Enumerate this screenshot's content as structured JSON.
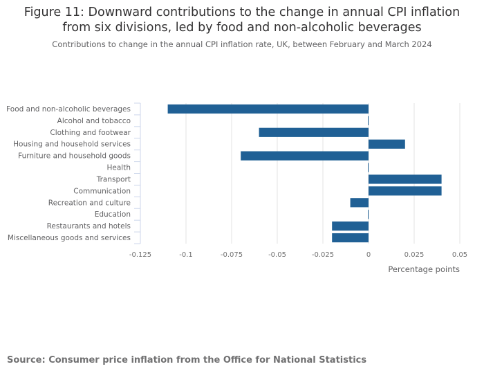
{
  "chart_data": {
    "type": "bar",
    "orientation": "horizontal",
    "title": "Figure 11: Downward contributions to the change in annual CPI inflation from six divisions, led by food and non-alcoholic beverages",
    "title_lines": [
      "Figure 11: Downward contributions to the change in annual CPI inflation",
      "from six divisions, led by food and non-alcoholic beverages"
    ],
    "subtitle": "Contributions to change in the annual CPI inflation rate, UK, between February and March 2024",
    "categories": [
      "Food and non-alcoholic beverages",
      "Alcohol and tobacco",
      "Clothing and footwear",
      "Housing and household services",
      "Furniture and household goods",
      "Health",
      "Transport",
      "Communication",
      "Recreation and culture",
      "Education",
      "Restaurants and hotels",
      "Miscellaneous goods and services"
    ],
    "values": [
      -0.11,
      0.0,
      -0.06,
      0.02,
      -0.07,
      0.0,
      0.04,
      0.04,
      -0.01,
      0.0,
      -0.02,
      -0.02
    ],
    "xlabel": "Percentage points",
    "ylabel": "",
    "xlim": [
      -0.125,
      0.05
    ],
    "xticks": [
      -0.125,
      -0.1,
      -0.075,
      -0.05,
      -0.025,
      0,
      0.025,
      0.05
    ],
    "xtick_labels": [
      "-0.125",
      "-0.1",
      "-0.075",
      "-0.05",
      "-0.025",
      "0",
      "0.025",
      "0.05"
    ],
    "grid": true,
    "legend": "none",
    "bar_color": "#206095",
    "source": "Source: Consumer price inflation from the Office for National Statistics"
  }
}
